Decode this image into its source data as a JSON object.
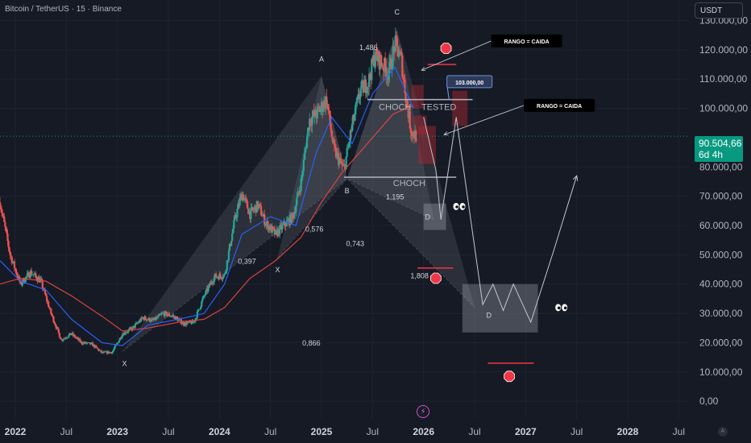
{
  "header": {
    "symbol": "Bitcoin / TetherUS · 15 · Binance",
    "currency": "USDT"
  },
  "price_badge": {
    "value": "90.504,66",
    "countdown": "6d 4h"
  },
  "icons": {
    "lightning": "lightning-icon",
    "auto": "A"
  },
  "colors": {
    "background": "#161a25",
    "up": "#26a69a",
    "down": "#ef5350",
    "ma_fast": "#2962ff",
    "ma_slow": "#e0443f",
    "badge": "#089981"
  },
  "chart_data": {
    "type": "candlestick",
    "y_axis": {
      "ticks": [
        "130.000,00",
        "120.000,00",
        "110.000,00",
        "100.000,00",
        "80.000,00",
        "70.000,00",
        "60.000,00",
        "50.000,00",
        "40.000,00",
        "30.000,00",
        "20.000,00",
        "10.000,00",
        "0,00"
      ],
      "tick_values": [
        130000,
        120000,
        110000,
        100000,
        80000,
        70000,
        60000,
        50000,
        40000,
        30000,
        20000,
        10000,
        0
      ],
      "ylim": [
        -6000,
        137000
      ]
    },
    "x_axis": {
      "ticks": [
        "2022",
        "Jul",
        "2023",
        "Jul",
        "2024",
        "Jul",
        "2025",
        "Jul",
        "2026",
        "Jul",
        "2027",
        "Jul",
        "2028",
        "Jul"
      ],
      "tick_dates": [
        2022.0,
        2022.5,
        2023.0,
        2023.5,
        2024.0,
        2024.5,
        2025.0,
        2025.5,
        2026.0,
        2026.5,
        2027.0,
        2027.5,
        2028.0,
        2028.5
      ],
      "bold": [
        true,
        false,
        true,
        false,
        true,
        false,
        true,
        false,
        true,
        false,
        true,
        false,
        true,
        false
      ]
    },
    "price_path": [
      [
        2021.85,
        68000
      ],
      [
        2021.95,
        50000
      ],
      [
        2022.05,
        40000
      ],
      [
        2022.15,
        44000
      ],
      [
        2022.25,
        41000
      ],
      [
        2022.35,
        30000
      ],
      [
        2022.45,
        21000
      ],
      [
        2022.55,
        23000
      ],
      [
        2022.65,
        20000
      ],
      [
        2022.75,
        19500
      ],
      [
        2022.85,
        16500
      ],
      [
        2022.95,
        16800
      ],
      [
        2023.05,
        23000
      ],
      [
        2023.15,
        25000
      ],
      [
        2023.25,
        28500
      ],
      [
        2023.35,
        27500
      ],
      [
        2023.45,
        30000
      ],
      [
        2023.55,
        29000
      ],
      [
        2023.65,
        26500
      ],
      [
        2023.75,
        27000
      ],
      [
        2023.85,
        36000
      ],
      [
        2023.95,
        42500
      ],
      [
        2024.05,
        43000
      ],
      [
        2024.15,
        62000
      ],
      [
        2024.22,
        71000
      ],
      [
        2024.3,
        64000
      ],
      [
        2024.38,
        67000
      ],
      [
        2024.45,
        61000
      ],
      [
        2024.55,
        57000
      ],
      [
        2024.63,
        60000
      ],
      [
        2024.72,
        63000
      ],
      [
        2024.8,
        75000
      ],
      [
        2024.88,
        96000
      ],
      [
        2024.95,
        98000
      ],
      [
        2025.05,
        103000
      ],
      [
        2025.12,
        86000
      ],
      [
        2025.22,
        79000
      ],
      [
        2025.3,
        94000
      ],
      [
        2025.38,
        106000
      ],
      [
        2025.46,
        109000
      ],
      [
        2025.52,
        118000
      ],
      [
        2025.58,
        116000
      ],
      [
        2025.66,
        112000
      ],
      [
        2025.72,
        122000
      ],
      [
        2025.78,
        117000
      ],
      [
        2025.83,
        103000
      ],
      [
        2025.88,
        92000
      ],
      [
        2025.93,
        90500
      ]
    ],
    "price_volatility": 0.035,
    "moving_averages": [
      {
        "path": [
          [
            2021.85,
            48000
          ],
          [
            2022.05,
            41000
          ],
          [
            2022.3,
            38000
          ],
          [
            2022.55,
            28000
          ],
          [
            2022.85,
            20000
          ],
          [
            2023.05,
            19000
          ],
          [
            2023.3,
            26000
          ],
          [
            2023.6,
            28000
          ],
          [
            2023.85,
            30000
          ],
          [
            2024.05,
            40000
          ],
          [
            2024.22,
            57000
          ],
          [
            2024.5,
            63000
          ],
          [
            2024.75,
            60000
          ],
          [
            2024.95,
            85000
          ],
          [
            2025.1,
            97000
          ],
          [
            2025.3,
            88000
          ],
          [
            2025.5,
            105000
          ],
          [
            2025.72,
            114000
          ],
          [
            2025.9,
            100000
          ]
        ]
      },
      {
        "path": [
          [
            2021.85,
            40000
          ],
          [
            2022.05,
            42000
          ],
          [
            2022.3,
            41000
          ],
          [
            2022.55,
            36000
          ],
          [
            2022.85,
            29000
          ],
          [
            2023.05,
            24000
          ],
          [
            2023.3,
            25000
          ],
          [
            2023.6,
            27000
          ],
          [
            2023.85,
            28000
          ],
          [
            2024.05,
            32000
          ],
          [
            2024.3,
            42000
          ],
          [
            2024.55,
            48000
          ],
          [
            2024.8,
            56000
          ],
          [
            2025.0,
            68000
          ],
          [
            2025.2,
            78000
          ],
          [
            2025.45,
            88000
          ],
          [
            2025.7,
            98000
          ],
          [
            2025.9,
            101000
          ]
        ]
      }
    ],
    "current_price": 90504.66,
    "harmonic_patterns": [
      {
        "points": [
          [
            2023.05,
            17000
          ],
          [
            2025.0,
            111000
          ],
          [
            2025.25,
            76000
          ],
          [
            2025.74,
            127000
          ],
          [
            2026.1,
            62000
          ]
        ]
      },
      {
        "points": [
          [
            2024.57,
            49000
          ],
          [
            2025.0,
            111000
          ],
          [
            2025.25,
            76000
          ],
          [
            2025.74,
            127000
          ],
          [
            2026.5,
            32000
          ]
        ]
      }
    ],
    "point_labels": [
      {
        "text": "X",
        "x": 2023.07,
        "y": 12000
      },
      {
        "text": "A",
        "x": 2025.0,
        "y": 116000
      },
      {
        "text": "B",
        "x": 2025.25,
        "y": 71000
      },
      {
        "text": "C",
        "x": 2025.74,
        "y": 132000
      },
      {
        "text": "X",
        "x": 2024.57,
        "y": 44000
      },
      {
        "text": "D",
        "x": 2026.04,
        "y": 62000
      },
      {
        "text": "D",
        "x": 2026.64,
        "y": 28500
      }
    ],
    "ratios": [
      {
        "text": "1,486",
        "x": 2025.46,
        "y": 120000
      },
      {
        "text": "0,576",
        "x": 2024.93,
        "y": 58000
      },
      {
        "text": "0,397",
        "x": 2024.27,
        "y": 47000
      },
      {
        "text": "0,743",
        "x": 2025.33,
        "y": 53000
      },
      {
        "text": "1,195",
        "x": 2025.72,
        "y": 69000
      },
      {
        "text": "1,808",
        "x": 2025.96,
        "y": 42000
      },
      {
        "text": "0,866",
        "x": 2024.9,
        "y": 19000
      }
    ],
    "horizontal_lines": [
      {
        "from": 2025.45,
        "to": 2026.48,
        "y": 103000
      },
      {
        "from": 2025.22,
        "to": 2026.32,
        "y": 76500
      },
      {
        "from": 2026.04,
        "to": 2026.32,
        "y": 115000
      },
      {
        "from": 2025.94,
        "to": 2026.29,
        "y": 45500
      },
      {
        "from": 2026.63,
        "to": 2027.08,
        "y": 13000
      }
    ],
    "choch": [
      {
        "text": "CHOCH",
        "x": 2025.72,
        "y": 99500
      },
      {
        "text": "TESTED",
        "x": 2026.15,
        "y": 99500
      },
      {
        "text": "CHOCH",
        "x": 2025.86,
        "y": 73500
      }
    ],
    "zones": [
      {
        "x1": 2025.88,
        "x2": 2026.0,
        "y1": 100000,
        "y2": 108000
      },
      {
        "x1": 2025.9,
        "x2": 2026.03,
        "y1": 91000,
        "y2": 97500
      },
      {
        "x1": 2025.95,
        "x2": 2026.12,
        "y1": 81000,
        "y2": 94000
      },
      {
        "x1": 2026.28,
        "x2": 2026.43,
        "y1": 94000,
        "y2": 106000
      }
    ],
    "target_boxes": [
      {
        "x1": 2026.0,
        "x2": 2026.22,
        "y1": 58500,
        "y2": 67500
      },
      {
        "x1": 2026.38,
        "x2": 2027.12,
        "y1": 23500,
        "y2": 40000
      }
    ],
    "stop_markers": [
      {
        "x": 2026.22,
        "y": 120500
      },
      {
        "x": 2026.12,
        "y": 42000
      },
      {
        "x": 2026.84,
        "y": 8500
      }
    ],
    "eyes": [
      {
        "x": 2026.35,
        "y": 66500
      },
      {
        "x": 2027.35,
        "y": 32000
      }
    ],
    "projection_path": [
      [
        2026.0,
        97000
      ],
      [
        2026.12,
        79000
      ],
      [
        2026.17,
        62000
      ],
      [
        2026.32,
        97000
      ],
      [
        2026.58,
        33000
      ],
      [
        2026.68,
        40000
      ],
      [
        2026.78,
        31000
      ],
      [
        2026.88,
        40000
      ],
      [
        2027.05,
        27000
      ],
      [
        2027.28,
        52000
      ],
      [
        2027.5,
        77000
      ]
    ],
    "annotations": [
      {
        "text": "RANGO  = CAIDA",
        "x": 2027.01,
        "y": 123000,
        "arrow_to": [
          2025.98,
          113000
        ]
      },
      {
        "text": "RANGO  = CAIDA",
        "x": 2027.33,
        "y": 101000,
        "arrow_to": [
          2026.2,
          91000
        ]
      }
    ],
    "price_callout": {
      "text": "103.000,00",
      "x": 2026.45,
      "y": 109000,
      "arrow_from": [
        2026.25,
        103000
      ]
    }
  }
}
